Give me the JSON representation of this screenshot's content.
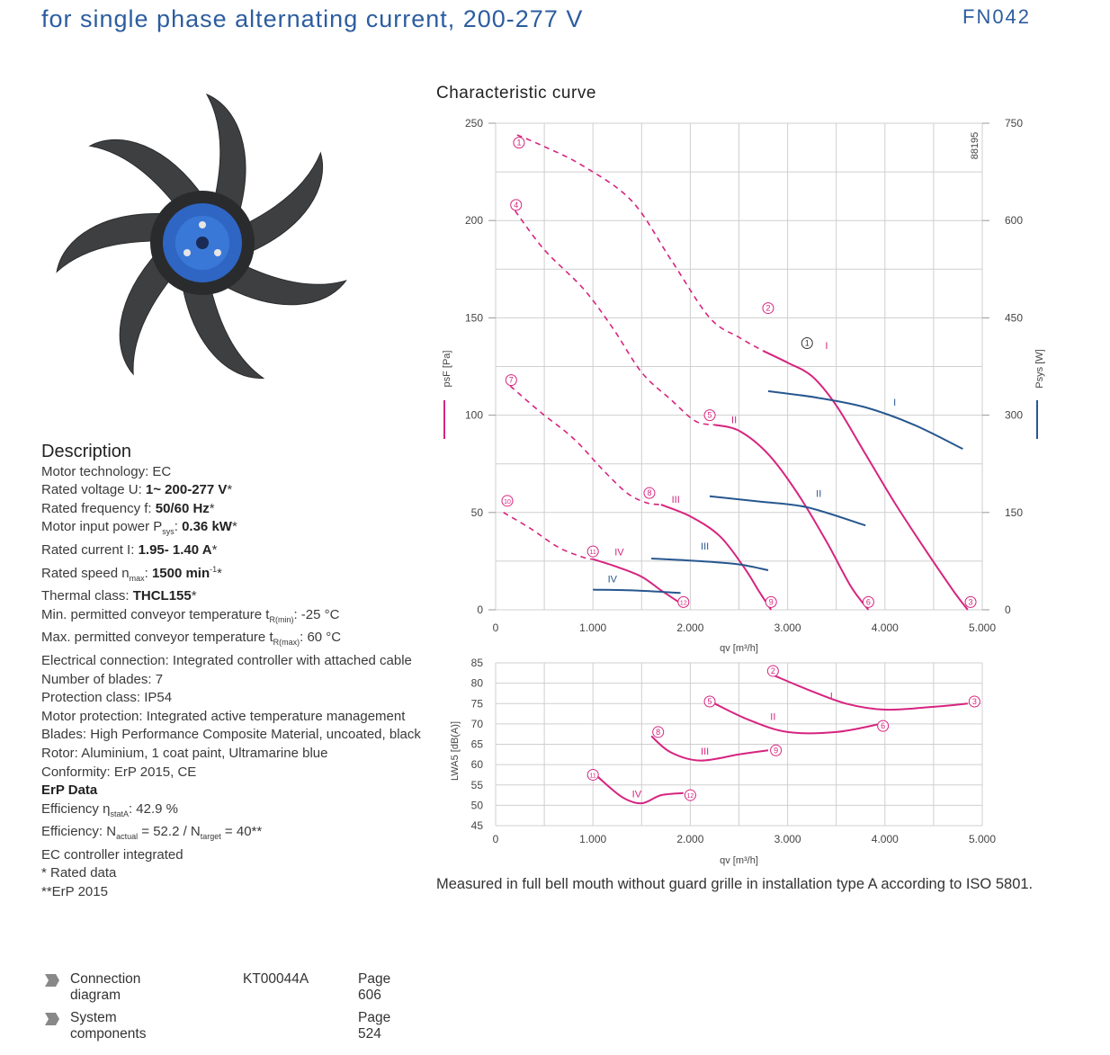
{
  "header": {
    "title": "for single phase alternating current, 200-277 V",
    "model": "FN042"
  },
  "description": {
    "heading": "Description",
    "lines": [
      {
        "label": "Motor technology: ",
        "value": "EC"
      },
      {
        "label": "Rated voltage U: ",
        "bold": "1~ 200-277 V",
        "suffix": "*"
      },
      {
        "label": "Rated frequency f: ",
        "bold": "50/60 Hz",
        "suffix": "*"
      },
      {
        "label_pre": "Motor input power P",
        "sub": "sys",
        "label_post": ": ",
        "bold": "0.36 kW",
        "suffix": "*"
      },
      {
        "label": "Rated current I: ",
        "bold": "1.95- 1.40 A",
        "suffix": "*"
      },
      {
        "label_pre": "Rated speed n",
        "sub": "max",
        "label_post": ": ",
        "bold": "1500 min",
        "sup": "-1",
        "suffix": "*"
      },
      {
        "label": "Thermal class: ",
        "bold": "THCL155",
        "suffix": "*"
      },
      {
        "label_pre": "Min. permitted conveyor temperature t",
        "sub": "R(min)",
        "label_post": ": ",
        "value": "-25  °C"
      },
      {
        "label_pre": "Max. permitted conveyor temperature t",
        "sub": "R(max)",
        "label_post": ": ",
        "value": "60  °C"
      },
      {
        "label": "Electrical connection: ",
        "value": "Integrated controller with attached cable"
      },
      {
        "label": "Number of blades: ",
        "value": "7"
      },
      {
        "label": "Protection class: ",
        "value": "IP54"
      },
      {
        "label": "Motor protection: ",
        "value": "Integrated active temperature management"
      },
      {
        "label": "Blades: ",
        "value": "High Performance Composite Material, uncoated, black"
      },
      {
        "label": "Rotor: ",
        "value": "Aluminium, 1 coat paint, Ultramarine blue"
      },
      {
        "label": "Conformity: ",
        "value": "ErP 2015, CE"
      }
    ],
    "erp_heading": "ErP Data",
    "erp": {
      "eff1_pre": "Efficiency η",
      "eff1_sub": "statA",
      "eff1_post": ": 42.9 %",
      "eff2_pre": "Efficiency: N",
      "eff2_sub1": "actual",
      "eff2_mid": " = 52.2 / N",
      "eff2_sub2": "target",
      "eff2_post": " = 40**",
      "ec": "EC controller integrated",
      "rated": "* Rated data",
      "erp2015": "**ErP 2015"
    }
  },
  "links": [
    {
      "label": "Connection diagram",
      "code": "KT00044A",
      "page": "Page 606"
    },
    {
      "label": "System components",
      "code": "",
      "page": "Page 524"
    }
  ],
  "note": "Measured in full bell mouth without guard grille in installation type A according to ISO 5801.",
  "chart_data": [
    {
      "type": "line",
      "title": "Characteristic curve",
      "id_code": "88195",
      "xlabel": "qv [m³/h]",
      "ylabel_left": "psF [Pa]",
      "ylabel_right": "Psys [W]",
      "xlim": [
        0,
        5000
      ],
      "ylim_left": [
        0,
        250
      ],
      "ylim_right": [
        0,
        750
      ],
      "x_ticks": [
        "0",
        "1.000",
        "2.000",
        "3.000",
        "4.000",
        "5.000"
      ],
      "y_ticks_left": [
        "0",
        "50",
        "100",
        "150",
        "200",
        "250"
      ],
      "y_ticks_right": [
        "0",
        "150",
        "300",
        "450",
        "600",
        "750"
      ],
      "grid": true,
      "colors": {
        "pressure": "#d6247f",
        "power": "#27578f"
      },
      "pressure_series": [
        {
          "name": "I",
          "dashed": [
            [
              220,
              244
            ],
            [
              500,
              238
            ],
            [
              900,
              228
            ],
            [
              1400,
              210
            ],
            [
              1800,
              180
            ],
            [
              2200,
              150
            ],
            [
              2500,
              140
            ],
            [
              2750,
              133
            ]
          ],
          "solid": [
            [
              2750,
              133
            ],
            [
              3000,
              127
            ],
            [
              3250,
              120
            ],
            [
              3500,
              105
            ],
            [
              3800,
              80
            ],
            [
              4100,
              55
            ],
            [
              4400,
              32
            ],
            [
              4700,
              10
            ],
            [
              4850,
              0
            ]
          ]
        },
        {
          "name": "II",
          "dashed": [
            [
              200,
              205
            ],
            [
              500,
              185
            ],
            [
              900,
              165
            ],
            [
              1200,
              145
            ],
            [
              1500,
              122
            ],
            [
              1800,
              108
            ],
            [
              2050,
              97
            ],
            [
              2250,
              95
            ]
          ],
          "solid": [
            [
              2250,
              95
            ],
            [
              2500,
              92
            ],
            [
              2800,
              80
            ],
            [
              3100,
              60
            ],
            [
              3400,
              35
            ],
            [
              3650,
              12
            ],
            [
              3830,
              0
            ]
          ]
        },
        {
          "name": "III",
          "dashed": [
            [
              150,
              115
            ],
            [
              450,
              102
            ],
            [
              800,
              88
            ],
            [
              1100,
              72
            ],
            [
              1350,
              60
            ],
            [
              1550,
              55
            ],
            [
              1700,
              54
            ]
          ],
          "solid": [
            [
              1700,
              54
            ],
            [
              2000,
              48
            ],
            [
              2300,
              38
            ],
            [
              2550,
              22
            ],
            [
              2700,
              10
            ],
            [
              2830,
              0
            ]
          ]
        },
        {
          "name": "IV",
          "dashed": [
            [
              80,
              50
            ],
            [
              350,
              42
            ],
            [
              650,
              32
            ],
            [
              900,
              27
            ],
            [
              1000,
              26
            ]
          ],
          "solid": [
            [
              1000,
              26
            ],
            [
              1250,
              22
            ],
            [
              1500,
              17
            ],
            [
              1700,
              10
            ],
            [
              1880,
              4
            ]
          ]
        }
      ],
      "power_series": [
        {
          "name": "I",
          "points": [
            [
              2800,
              337
            ],
            [
              3300,
              327
            ],
            [
              3800,
              312
            ],
            [
              4300,
              285
            ],
            [
              4800,
              248
            ]
          ]
        },
        {
          "name": "II",
          "points": [
            [
              2200,
              175
            ],
            [
              2700,
              167
            ],
            [
              3200,
              158
            ],
            [
              3800,
              130
            ]
          ]
        },
        {
          "name": "III",
          "points": [
            [
              1600,
              79
            ],
            [
              2100,
              75
            ],
            [
              2500,
              70
            ],
            [
              2800,
              61
            ]
          ]
        },
        {
          "name": "IV",
          "points": [
            [
              1000,
              31
            ],
            [
              1400,
              30
            ],
            [
              1900,
              26
            ]
          ]
        }
      ],
      "point_markers": [
        {
          "n": "1",
          "x": 240,
          "y": 240,
          "color": "pressure"
        },
        {
          "n": "2",
          "x": 2800,
          "y": 155,
          "color": "pressure"
        },
        {
          "n": "3",
          "x": 4880,
          "y": 4,
          "color": "pressure"
        },
        {
          "n": "4",
          "x": 210,
          "y": 208,
          "color": "pressure"
        },
        {
          "n": "5",
          "x": 2200,
          "y": 100,
          "color": "pressure"
        },
        {
          "n": "6",
          "x": 3830,
          "y": 4,
          "color": "pressure"
        },
        {
          "n": "7",
          "x": 160,
          "y": 118,
          "color": "pressure"
        },
        {
          "n": "8",
          "x": 1580,
          "y": 60,
          "color": "pressure"
        },
        {
          "n": "9",
          "x": 2830,
          "y": 4,
          "color": "pressure"
        },
        {
          "n": "10",
          "x": 120,
          "y": 56,
          "color": "pressure"
        },
        {
          "n": "11",
          "x": 1000,
          "y": 30,
          "color": "pressure"
        },
        {
          "n": "12",
          "x": 1930,
          "y": 4,
          "color": "pressure"
        },
        {
          "n": "1",
          "x": 3200,
          "y": 137,
          "color": "black"
        }
      ],
      "series_labels": [
        {
          "text": "I",
          "x": 3400,
          "y": 134,
          "color": "pressure"
        },
        {
          "text": "II",
          "x": 2450,
          "y": 96,
          "color": "pressure"
        },
        {
          "text": "III",
          "x": 1850,
          "y": 55,
          "color": "pressure"
        },
        {
          "text": "IV",
          "x": 1270,
          "y": 28,
          "color": "pressure"
        },
        {
          "text": "I",
          "x": 4100,
          "y": 105,
          "color": "power"
        },
        {
          "text": "II",
          "x": 3320,
          "y": 58,
          "color": "power"
        },
        {
          "text": "III",
          "x": 2150,
          "y": 31,
          "color": "power"
        },
        {
          "text": "IV",
          "x": 1200,
          "y": 14,
          "color": "power"
        }
      ]
    },
    {
      "type": "line",
      "xlabel": "qv [m³/h]",
      "ylabel": "LWA5 [dB(A)]",
      "xlim": [
        0,
        5000
      ],
      "ylim": [
        45,
        85
      ],
      "x_ticks": [
        "0",
        "1.000",
        "2.000",
        "3.000",
        "4.000",
        "5.000"
      ],
      "y_ticks": [
        "45",
        "50",
        "55",
        "60",
        "65",
        "70",
        "75",
        "80",
        "85"
      ],
      "grid": true,
      "series": [
        {
          "name": "I",
          "points": [
            [
              2850,
              82
            ],
            [
              3200,
              78.5
            ],
            [
              3600,
              75
            ],
            [
              4000,
              73.5
            ],
            [
              4500,
              74.2
            ],
            [
              4850,
              75
            ]
          ]
        },
        {
          "name": "II",
          "points": [
            [
              2250,
              75
            ],
            [
              2600,
              71
            ],
            [
              3000,
              68
            ],
            [
              3500,
              68
            ],
            [
              3950,
              70
            ]
          ]
        },
        {
          "name": "III",
          "points": [
            [
              1600,
              67
            ],
            [
              1800,
              63
            ],
            [
              2100,
              61
            ],
            [
              2500,
              62.5
            ],
            [
              2800,
              63.5
            ]
          ]
        },
        {
          "name": "IV",
          "points": [
            [
              1050,
              57
            ],
            [
              1300,
              52
            ],
            [
              1500,
              50.5
            ],
            [
              1700,
              52.5
            ],
            [
              1930,
              53
            ]
          ]
        }
      ],
      "point_markers": [
        {
          "n": "2",
          "x": 2850,
          "y": 83
        },
        {
          "n": "3",
          "x": 4920,
          "y": 75.5
        },
        {
          "n": "5",
          "x": 2200,
          "y": 75.5
        },
        {
          "n": "6",
          "x": 3980,
          "y": 69.5
        },
        {
          "n": "8",
          "x": 1670,
          "y": 68
        },
        {
          "n": "9",
          "x": 2880,
          "y": 63.5
        },
        {
          "n": "11",
          "x": 1000,
          "y": 57.5
        },
        {
          "n": "12",
          "x": 2000,
          "y": 52.5
        }
      ],
      "series_labels": [
        {
          "text": "I",
          "x": 3450,
          "y": 76
        },
        {
          "text": "II",
          "x": 2850,
          "y": 71
        },
        {
          "text": "III",
          "x": 2150,
          "y": 62.5
        },
        {
          "text": "IV",
          "x": 1450,
          "y": 52
        }
      ]
    }
  ]
}
